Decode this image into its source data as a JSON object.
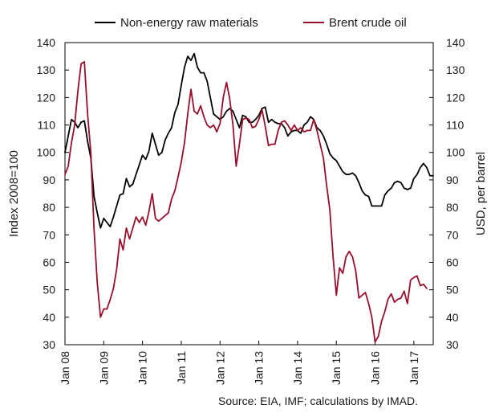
{
  "chart_data": {
    "type": "line",
    "title": "",
    "source": "Source: EIA, IMF; calculations by IMAD.",
    "legend_position": "top",
    "grid": false,
    "x": {
      "ticks": [
        "Jan 08",
        "Jan 09",
        "Jan 10",
        "Jan 11",
        "Jan 12",
        "Jan 13",
        "Jan 14",
        "Jan 15",
        "Jan 16",
        "Jan 17"
      ],
      "start": "2008-01",
      "end": "2017-05"
    },
    "y_left": {
      "label": "Index 2008=100",
      "ylim": [
        30,
        140
      ],
      "ticks": [
        "30",
        "40",
        "50",
        "60",
        "70",
        "80",
        "90",
        "100",
        "110",
        "120",
        "130",
        "140"
      ]
    },
    "y_right": {
      "label": "USD, per barrel",
      "ylim": [
        30,
        140
      ],
      "ticks": [
        "30",
        "40",
        "50",
        "60",
        "70",
        "80",
        "90",
        "100",
        "110",
        "120",
        "130",
        "140"
      ]
    },
    "series": [
      {
        "name": "Non-energy raw materials",
        "axis": "left",
        "color": "#000000",
        "values": [
          100,
          106,
          112,
          111,
          109,
          111,
          111.5,
          104,
          98,
          84,
          78,
          72.5,
          76,
          74.5,
          73,
          76.5,
          80.5,
          84.5,
          85,
          90.5,
          87.5,
          88.5,
          92,
          95.5,
          99,
          97.5,
          100.5,
          107,
          103,
          99,
          100,
          104.5,
          107,
          109,
          114.5,
          117.5,
          124.5,
          131,
          135,
          133.5,
          136,
          131,
          129,
          129,
          126,
          120,
          114,
          113,
          112,
          113,
          115,
          116,
          115,
          112,
          109,
          113.5,
          113,
          111,
          111,
          112,
          113.5,
          116,
          116.5,
          111,
          112,
          111,
          110.5,
          110.5,
          109,
          106,
          107.5,
          108,
          108,
          107,
          110,
          111,
          113,
          112,
          109,
          108,
          106,
          103,
          99.5,
          98,
          97,
          95,
          93,
          92,
          92,
          92.5,
          91.5,
          89,
          86,
          84.5,
          84,
          80.5,
          80.5,
          80.5,
          80.5,
          84.5,
          86,
          87,
          89,
          89.5,
          89,
          87,
          86.5,
          87,
          90.5,
          92,
          94.5,
          96,
          94.5,
          91.5,
          91.5
        ]
      },
      {
        "name": "Brent crude oil",
        "axis": "right",
        "color": "#990f2b",
        "values": [
          92,
          95,
          103.5,
          110,
          122.5,
          132.3,
          133,
          114,
          100,
          72,
          52.5,
          40,
          43,
          43,
          46.5,
          50.5,
          57.5,
          68.5,
          64.5,
          72.5,
          68.5,
          72.5,
          76.5,
          74.5,
          76.5,
          73.5,
          78.5,
          85,
          76,
          75,
          76,
          77,
          78,
          83,
          86,
          91,
          96.5,
          103.5,
          114,
          123,
          115,
          114,
          117,
          113,
          110,
          109,
          110,
          107.5,
          110.5,
          120,
          125.5,
          119.5,
          110,
          95,
          103,
          112,
          112.5,
          112,
          109,
          109.5,
          112,
          115.5,
          109.5,
          102.5,
          103,
          103,
          108,
          111,
          111.5,
          110,
          108,
          110,
          108,
          109,
          107.5,
          108,
          108,
          112,
          108,
          103,
          98,
          88,
          79,
          62,
          48,
          58,
          56,
          62,
          64,
          62,
          57,
          47,
          48,
          49,
          45,
          40,
          31,
          33,
          38.5,
          42,
          46.5,
          48.5,
          45.5,
          46.5,
          47,
          49.5,
          45,
          53.5,
          54.5,
          55,
          51.5,
          52,
          50.5
        ]
      }
    ]
  }
}
